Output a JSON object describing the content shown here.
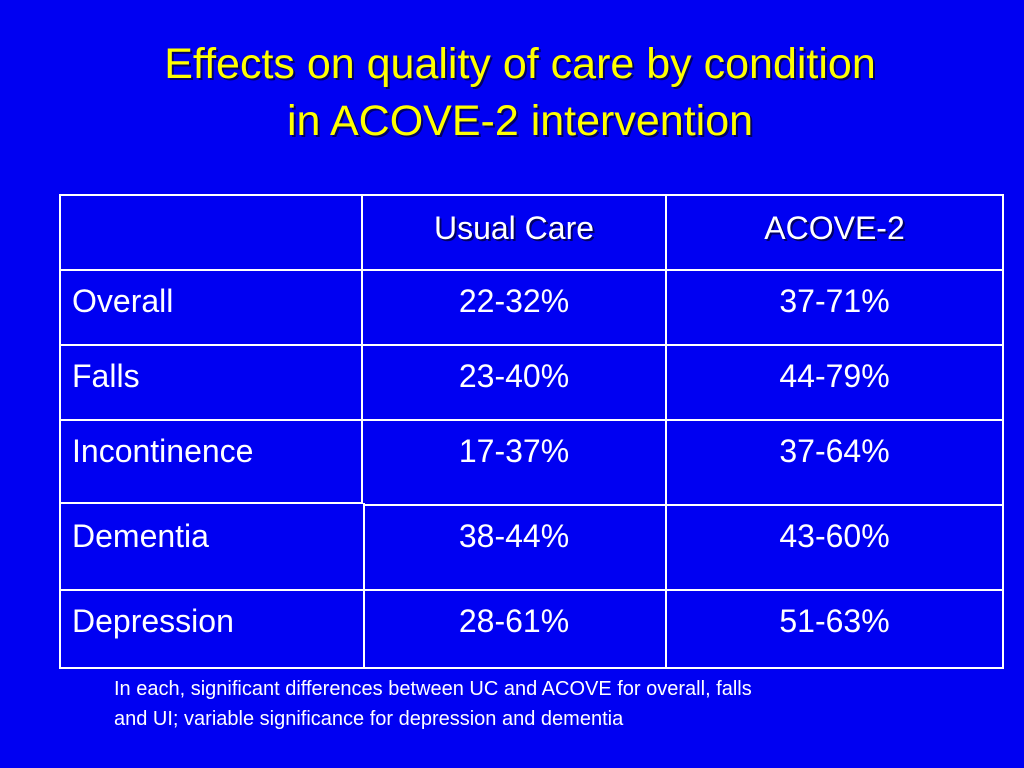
{
  "slide": {
    "title_lines": [
      "Effects on quality of care by condition",
      "in ACOVE-2 intervention"
    ],
    "colors": {
      "background": "#0000f2",
      "title": "#ffff00",
      "text": "#ffffff",
      "table_border": "#ffffff"
    }
  },
  "table": {
    "headers": [
      "",
      "Usual Care",
      "ACOVE-2"
    ],
    "rows": [
      {
        "condition": "Overall",
        "usual_care": "22-32%",
        "acove2": "37-71%"
      },
      {
        "condition": "Falls",
        "usual_care": "23-40%",
        "acove2": "44-79%"
      },
      {
        "condition": "Incontinence",
        "usual_care": "17-37%",
        "acove2": "37-64%"
      },
      {
        "condition": "Dementia",
        "usual_care": "38-44%",
        "acove2": "43-60%"
      },
      {
        "condition": "Depression",
        "usual_care": "28-61%",
        "acove2": "51-63%"
      }
    ]
  },
  "footnote": {
    "lines": [
      "In each, significant differences between UC and ACOVE for overall, falls",
      "and UI; variable significance for depression and dementia"
    ]
  }
}
